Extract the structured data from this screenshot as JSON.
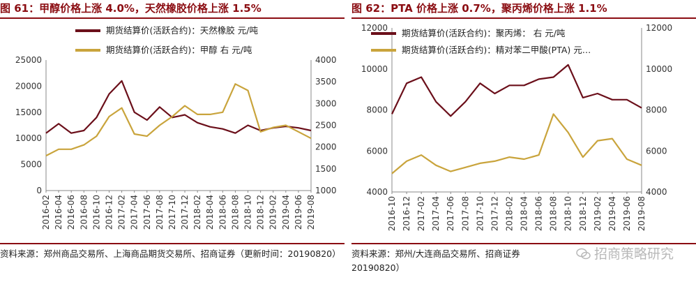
{
  "chart_data": [
    {
      "type": "line",
      "title": "图 61：甲醇价格上涨 4.0%，天然橡胶价格上涨 1.5%",
      "source": "资料来源：郑州商品交易所、上海商品期货交易所、招商证券（更新时间：20190820）",
      "x": [
        "2016-02",
        "2016-04",
        "2016-06",
        "2016-08",
        "2016-10",
        "2016-12",
        "2017-02",
        "2017-04",
        "2017-06",
        "2017-08",
        "2017-10",
        "2017-12",
        "2018-02",
        "2018-04",
        "2018-06",
        "2018-08",
        "2018-10",
        "2018-12",
        "2019-02",
        "2019-04",
        "2019-06",
        "2019-08"
      ],
      "x_tick_labels": [
        "2016-02",
        "2016-04",
        "2016-06",
        "2016-08",
        "2016-10",
        "2016-12",
        "2017-02",
        "2017-04",
        "2017-06",
        "2017-08",
        "2017-10",
        "2017-12",
        "2018-02",
        "2018-04",
        "2018-06",
        "2018-08",
        "2018-10",
        "2018-12",
        "2019-02",
        "2019-04",
        "2019-06",
        "2019-08"
      ],
      "y_left": {
        "ylim": [
          0,
          25000
        ],
        "ticks": [
          "0",
          "5000",
          "10000",
          "15000",
          "20000",
          "25000"
        ]
      },
      "y_right": {
        "ylim": [
          1000,
          4000
        ],
        "ticks": [
          "1000",
          "1500",
          "2000",
          "2500",
          "3000",
          "3500",
          "4000"
        ]
      },
      "grid": false,
      "legend_position": "top",
      "series": [
        {
          "name": "期货结算价(活跃合约)：天然橡胶  元/吨",
          "axis": "left",
          "color": "#6b0f1a",
          "values": [
            11000,
            12800,
            11000,
            11500,
            14000,
            18500,
            21000,
            15000,
            13500,
            16000,
            14000,
            14500,
            13000,
            12200,
            11800,
            11000,
            12500,
            11500,
            12000,
            12300,
            12000,
            11500
          ]
        },
        {
          "name": "期货结算价(活跃合约)：甲醇  右  元/吨",
          "axis": "right",
          "color": "#c9a43c",
          "values": [
            1800,
            1950,
            1950,
            2050,
            2250,
            2700,
            2900,
            2300,
            2250,
            2500,
            2700,
            2950,
            2750,
            2750,
            2800,
            3450,
            3300,
            2350,
            2450,
            2500,
            2350,
            2200
          ]
        }
      ],
      "legend_header": "期货结算价(活跃合约)：天然橡胶  元/吨"
    },
    {
      "type": "line",
      "title": "图 62：PTA 价格上涨 0.7%，聚丙烯价格上涨 1.1%",
      "source": "资料来源：郑州/大连商品交易所、招商证券",
      "source_line2": "20190820）",
      "x": [
        "2016-10",
        "2016-12",
        "2017-02",
        "2017-04",
        "2017-06",
        "2017-08",
        "2017-10",
        "2017-12",
        "2018-02",
        "2018-04",
        "2018-06",
        "2018-08",
        "2018-10",
        "2018-12",
        "2019-02",
        "2019-04",
        "2019-06",
        "2019-08"
      ],
      "x_tick_labels": [
        "2016-10",
        "2016-12",
        "2017-02",
        "2017-04",
        "2017-06",
        "2017-08",
        "2017-10",
        "2017-12",
        "2018-02",
        "2018-04",
        "2018-06",
        "2018-08",
        "2018-10",
        "2018-12",
        "2019-02",
        "2019-04",
        "2019-06",
        "2019-08"
      ],
      "y_left": {
        "ylim": [
          4000,
          12000
        ],
        "ticks": [
          "4000",
          "6000",
          "8000",
          "10000",
          "12000"
        ]
      },
      "y_right": {
        "ylim": [
          4000,
          12000
        ],
        "ticks": [
          "4000",
          "6000",
          "8000",
          "10000",
          "12000"
        ]
      },
      "grid": false,
      "legend_position": "top",
      "series": [
        {
          "name": "期货结算价(活跃合约)：聚丙烯：  右  元/吨",
          "axis": "right",
          "color": "#6b0f1a",
          "values": [
            7800,
            9300,
            9600,
            8400,
            7700,
            8400,
            9300,
            8800,
            9200,
            9200,
            9500,
            9600,
            10200,
            8600,
            8800,
            8500,
            8500,
            8100
          ]
        },
        {
          "name": "期货结算价(活跃合约)：精对苯二甲酸(PTA)  元…",
          "axis": "left",
          "color": "#c9a43c",
          "values": [
            4900,
            5500,
            5800,
            5300,
            5000,
            5200,
            5400,
            5500,
            5700,
            5600,
            5800,
            7800,
            6900,
            5700,
            6500,
            6600,
            5600,
            5300
          ]
        }
      ]
    }
  ],
  "watermark": "招商策略研究"
}
